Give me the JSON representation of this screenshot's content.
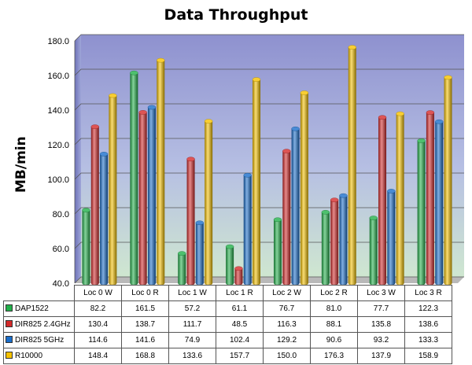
{
  "chart_data": {
    "type": "bar",
    "title": "Data Throughput",
    "ylabel": "MB/min",
    "xlabel": "",
    "categories": [
      "Loc 0 W",
      "Loc 0 R",
      "Loc 1 W",
      "Loc 1 R",
      "Loc 2 W",
      "Loc 2 R",
      "Loc 3 W",
      "Loc 3 R"
    ],
    "ylim": [
      40,
      180
    ],
    "yticks": [
      "40.0",
      "60.0",
      "80.0",
      "100.0",
      "120.0",
      "140.0",
      "160.0",
      "180.0"
    ],
    "grid": true,
    "legend": "data-table",
    "series": [
      {
        "name": "DAP1522",
        "color": "#22b04a",
        "values": [
          82.2,
          161.5,
          57.2,
          61.1,
          76.7,
          81.0,
          77.7,
          122.3
        ],
        "labels": [
          "82.2",
          "161.5",
          "57.2",
          "61.1",
          "76.7",
          "81.0",
          "77.7",
          "122.3"
        ]
      },
      {
        "name": "DIR825 2.4GHz",
        "color": "#d42a2a",
        "values": [
          130.4,
          138.7,
          111.7,
          48.5,
          116.3,
          88.1,
          135.8,
          138.6
        ],
        "labels": [
          "130.4",
          "138.7",
          "111.7",
          "48.5",
          "116.3",
          "88.1",
          "135.8",
          "138.6"
        ]
      },
      {
        "name": "DIR825 5GHz",
        "color": "#1a6ecb",
        "values": [
          114.6,
          141.6,
          74.9,
          102.4,
          129.2,
          90.6,
          93.2,
          133.3
        ],
        "labels": [
          "114.6",
          "141.6",
          "74.9",
          "102.4",
          "129.2",
          "90.6",
          "93.2",
          "133.3"
        ]
      },
      {
        "name": "R10000",
        "color": "#f6c200",
        "values": [
          148.4,
          168.8,
          133.6,
          157.7,
          150.0,
          176.3,
          137.9,
          158.9
        ],
        "labels": [
          "148.4",
          "168.8",
          "133.6",
          "157.7",
          "150.0",
          "176.3",
          "137.9",
          "158.9"
        ]
      }
    ]
  }
}
